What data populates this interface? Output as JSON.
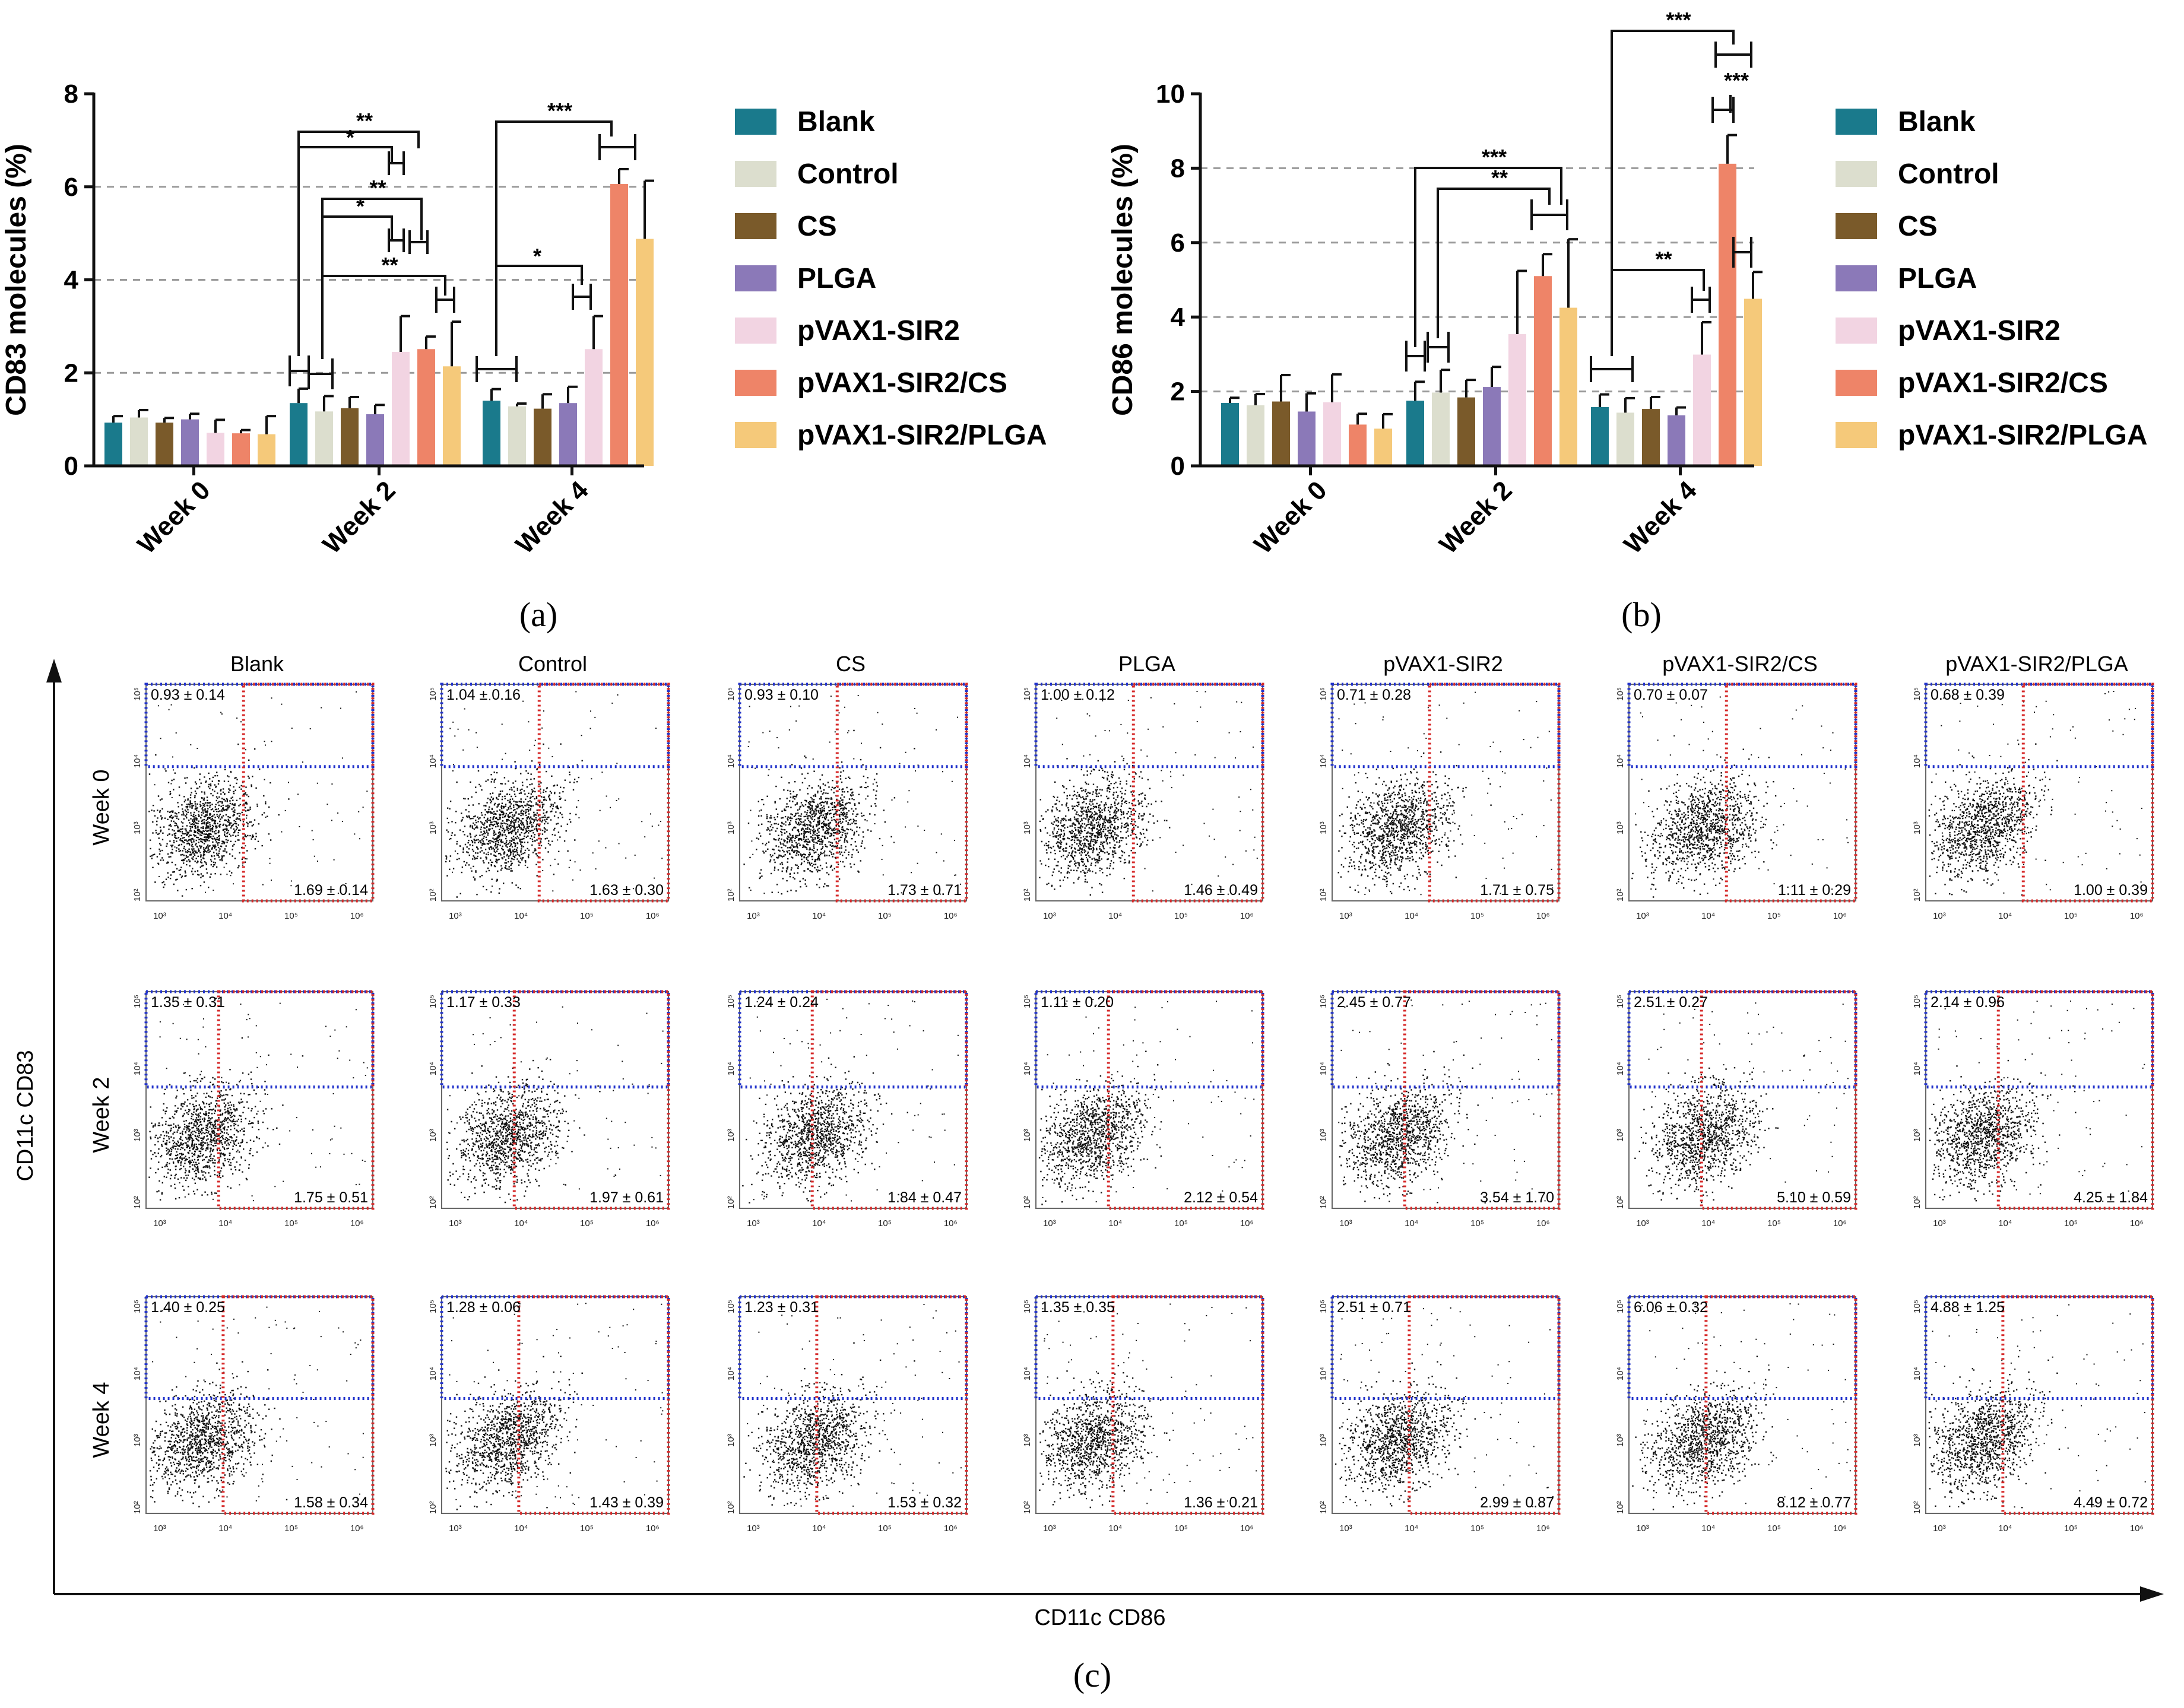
{
  "chart_data": [
    {
      "type": "bar",
      "panel_label": "(a)",
      "ylabel": "CD83 molecules (%)",
      "ylim": [
        0,
        8
      ],
      "yticks": [
        "0",
        "2",
        "4",
        "6",
        "8"
      ],
      "categories": [
        "Week 0",
        "Week 2",
        "Week 4"
      ],
      "series": [
        {
          "name": "Blank",
          "color": "#1A7A8C",
          "values": [
            0.93,
            1.35,
            1.4
          ],
          "errors": [
            0.14,
            0.31,
            0.25
          ]
        },
        {
          "name": "Control",
          "color": "#DCDECE",
          "values": [
            1.04,
            1.17,
            1.28
          ],
          "errors": [
            0.16,
            0.33,
            0.06
          ]
        },
        {
          "name": "CS",
          "color": "#7A5A2A",
          "values": [
            0.93,
            1.24,
            1.23
          ],
          "errors": [
            0.1,
            0.24,
            0.31
          ]
        },
        {
          "name": "PLGA",
          "color": "#8B79B8",
          "values": [
            1.0,
            1.11,
            1.35
          ],
          "errors": [
            0.12,
            0.2,
            0.35
          ]
        },
        {
          "name": "pVAX1-SIR2",
          "color": "#F2D4E2",
          "values": [
            0.71,
            2.45,
            2.51
          ],
          "errors": [
            0.28,
            0.77,
            0.71
          ]
        },
        {
          "name": "pVAX1-SIR2/CS",
          "color": "#EE8468",
          "values": [
            0.7,
            2.51,
            6.06
          ],
          "errors": [
            0.07,
            0.27,
            0.32
          ]
        },
        {
          "name": "pVAX1-SIR2/PLGA",
          "color": "#F5C97A",
          "values": [
            0.68,
            2.14,
            4.88
          ],
          "errors": [
            0.39,
            0.96,
            1.25
          ]
        }
      ],
      "significance": [
        "**",
        "*",
        "**",
        "*",
        "**",
        "***",
        "*"
      ]
    },
    {
      "type": "bar",
      "panel_label": "(b)",
      "ylabel": "CD86 molecules (%)",
      "ylim": [
        0,
        10
      ],
      "yticks": [
        "0",
        "2",
        "4",
        "6",
        "8",
        "10"
      ],
      "categories": [
        "Week 0",
        "Week 2",
        "Week 4"
      ],
      "series": [
        {
          "name": "Blank",
          "color": "#1A7A8C",
          "values": [
            1.69,
            1.75,
            1.58
          ],
          "errors": [
            0.14,
            0.51,
            0.34
          ]
        },
        {
          "name": "Control",
          "color": "#DCDECE",
          "values": [
            1.63,
            1.97,
            1.43
          ],
          "errors": [
            0.3,
            0.61,
            0.39
          ]
        },
        {
          "name": "CS",
          "color": "#7A5A2A",
          "values": [
            1.73,
            1.84,
            1.53
          ],
          "errors": [
            0.71,
            0.47,
            0.32
          ]
        },
        {
          "name": "PLGA",
          "color": "#8B79B8",
          "values": [
            1.46,
            2.12,
            1.36
          ],
          "errors": [
            0.49,
            0.54,
            0.21
          ]
        },
        {
          "name": "pVAX1-SIR2",
          "color": "#F2D4E2",
          "values": [
            1.71,
            3.54,
            2.99
          ],
          "errors": [
            0.75,
            1.7,
            0.87
          ]
        },
        {
          "name": "pVAX1-SIR2/CS",
          "color": "#EE8468",
          "values": [
            1.11,
            5.1,
            8.12
          ],
          "errors": [
            0.29,
            0.59,
            0.77
          ]
        },
        {
          "name": "pVAX1-SIR2/PLGA",
          "color": "#F5C97A",
          "values": [
            1.0,
            4.25,
            4.49
          ],
          "errors": [
            0.39,
            1.84,
            0.72
          ]
        }
      ],
      "significance": [
        "***",
        "**",
        "***",
        "***",
        "**"
      ]
    },
    {
      "type": "scatter",
      "panel_label": "(c)",
      "xlabel": "CD11c CD86",
      "ylabel": "CD11c CD83",
      "columns": [
        "Blank",
        "Control",
        "CS",
        "PLGA",
        "pVAX1-SIR2",
        "pVAX1-SIR2/CS",
        "pVAX1-SIR2/PLGA"
      ],
      "rows": [
        "Week 0",
        "Week 2",
        "Week 4"
      ],
      "x_ticks": [
        "10³",
        "10⁴",
        "10⁵",
        "10⁶"
      ],
      "y_ticks": [
        "10²",
        "10³",
        "10⁴",
        "10⁵"
      ],
      "cd83_values": [
        [
          "0.93 ± 0.14",
          "1.04 ± 0.16",
          "0.93 ± 0.10",
          "1.00 ± 0.12",
          "0.71 ± 0.28",
          "0.70 ± 0.07",
          "0.68 ± 0.39"
        ],
        [
          "1.35 ± 0.31",
          "1.17 ± 0.33",
          "1.24 ± 0.24",
          "1.11 ± 0.20",
          "2.45 ± 0.77",
          "2.51 ± 0.27",
          "2.14 ± 0.96"
        ],
        [
          "1.40 ± 0.25",
          "1.28 ± 0.06",
          "1.23 ± 0.31",
          "1.35 ± 0.35",
          "2.51 ± 0.71",
          "6.06 ± 0.32",
          "4.88 ± 1.25"
        ]
      ],
      "cd86_values": [
        [
          "1.69 ± 0.14",
          "1.63 ± 0.30",
          "1.73 ± 0.71",
          "1.46 ± 0.49",
          "1.71 ± 0.75",
          "1.11 ± 0.29",
          "1.00 ± 0.39"
        ],
        [
          "1.75 ± 0.51",
          "1.97 ± 0.61",
          "1.84 ± 0.47",
          "2.12 ± 0.54",
          "3.54 ± 1.70",
          "5.10 ± 0.59",
          "4.25 ± 1.84"
        ],
        [
          "1.58 ± 0.34",
          "1.43 ± 0.39",
          "1.53 ± 0.32",
          "1.36 ± 0.21",
          "2.99 ± 0.87",
          "8.12 ± 0.77",
          "4.49 ± 0.72"
        ]
      ]
    }
  ]
}
